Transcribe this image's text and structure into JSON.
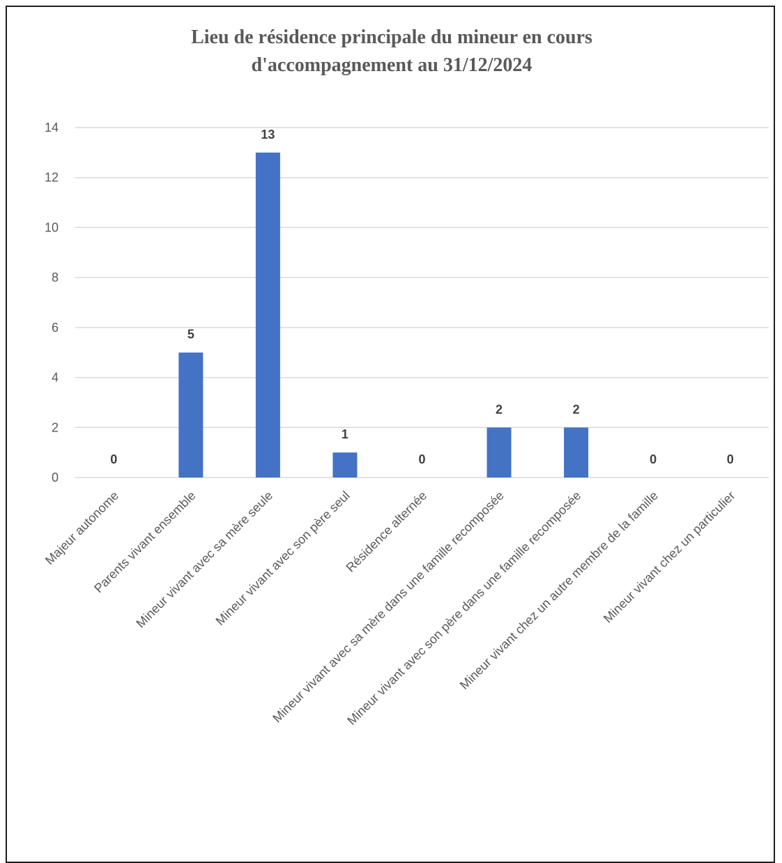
{
  "chart_data": {
    "type": "bar",
    "title_lines": [
      "Lieu de résidence principale du mineur en cours",
      "d'accompagnement au 31/12/2024"
    ],
    "categories": [
      "Majeur autonome",
      "Parents vivant ensemble",
      "Mineur vivant avec sa mère seule",
      "Mineur vivant avec son père seul",
      "Résidence alternée",
      "Mineur vivant avec sa mère dans une famille recomposée",
      "Mineur vivant avec son père dans une famille recomposée",
      "Mineur vivant chez un autre membre de la famille",
      "Mineur vivant chez un particulier"
    ],
    "values": [
      0,
      5,
      13,
      1,
      0,
      2,
      2,
      0,
      0
    ],
    "data_labels": [
      "0",
      "5",
      "13",
      "1",
      "0",
      "2",
      "2",
      "0",
      "0"
    ],
    "yticks": [
      0,
      2,
      4,
      6,
      8,
      10,
      12,
      14
    ],
    "ylim": [
      0,
      14
    ],
    "grid": true,
    "legend": "none",
    "bar_color": "#4472C4",
    "gridline_color": "#D9D9D9",
    "text_color": "#595959"
  }
}
